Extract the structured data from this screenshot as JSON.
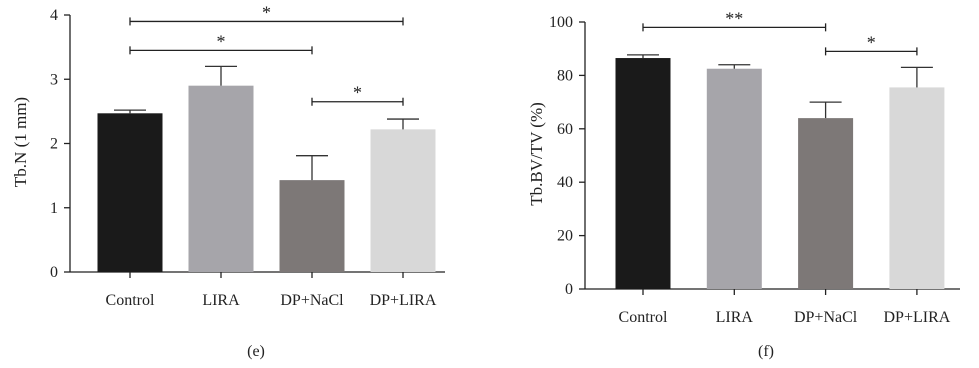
{
  "chart_data": [
    {
      "type": "bar",
      "panel_label": "(e)",
      "ylabel": "Tb.N (1 mm)",
      "ylim": [
        0,
        4
      ],
      "yticks": [
        0,
        1,
        2,
        3,
        4
      ],
      "categories": [
        "Control",
        "LIRA",
        "DP+NaCl",
        "DP+LIRA"
      ],
      "values": [
        2.47,
        2.9,
        1.43,
        2.22
      ],
      "errors": [
        0.05,
        0.3,
        0.38,
        0.16
      ],
      "colors": [
        "#1a1a1a",
        "#a6a5aa",
        "#7d7877",
        "#d8d8d8"
      ],
      "significance": [
        {
          "from": 0,
          "to": 3,
          "y": 3.9,
          "label": "*"
        },
        {
          "from": 0,
          "to": 2,
          "y": 3.45,
          "label": "*"
        },
        {
          "from": 2,
          "to": 3,
          "y": 2.65,
          "label": "*"
        }
      ]
    },
    {
      "type": "bar",
      "panel_label": "(f)",
      "ylabel": "Tb.BV/TV (%)",
      "ylim": [
        0,
        100
      ],
      "yticks": [
        0,
        20,
        40,
        60,
        80,
        100
      ],
      "categories": [
        "Control",
        "LIRA",
        "DP+NaCl",
        "DP+LIRA"
      ],
      "values": [
        86.5,
        82.5,
        64,
        75.5
      ],
      "errors": [
        1.2,
        1.5,
        6,
        7.5
      ],
      "colors": [
        "#1a1a1a",
        "#a6a5aa",
        "#7d7877",
        "#d8d8d8"
      ],
      "significance": [
        {
          "from": 0,
          "to": 2,
          "y": 98,
          "label": "**"
        },
        {
          "from": 2,
          "to": 3,
          "y": 89,
          "label": "*"
        }
      ]
    }
  ]
}
